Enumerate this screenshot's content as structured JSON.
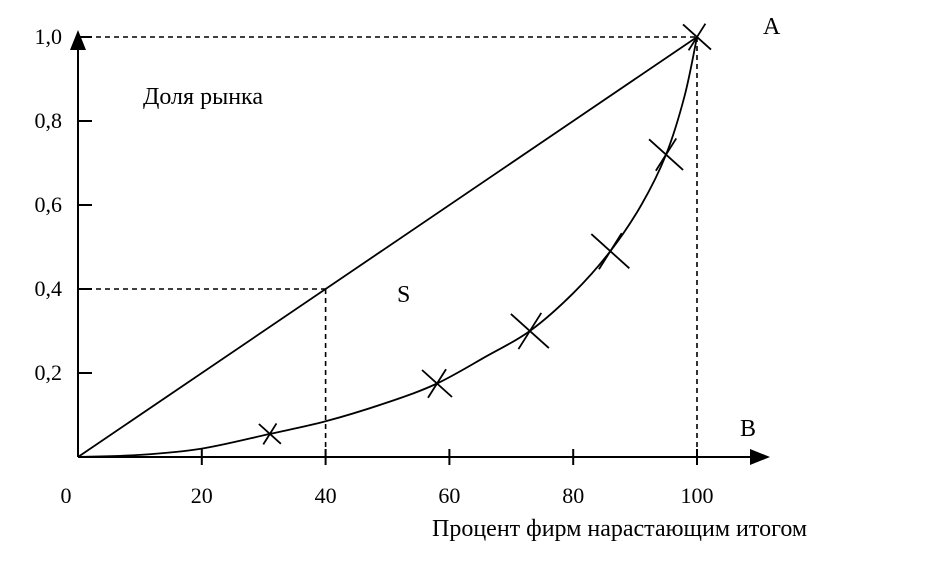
{
  "chart_data": {
    "type": "line",
    "xlabel": "Процент фирм нарастающим итогом",
    "ylabel": "Доля рынка",
    "xlim": [
      0,
      100
    ],
    "ylim": [
      0,
      1.0
    ],
    "x_ticks": [
      {
        "value": 0,
        "label": "0"
      },
      {
        "value": 20,
        "label": "20"
      },
      {
        "value": 40,
        "label": "40"
      },
      {
        "value": 60,
        "label": "60"
      },
      {
        "value": 80,
        "label": "80"
      },
      {
        "value": 100,
        "label": "100"
      }
    ],
    "y_ticks": [
      {
        "value": 0.2,
        "label": "0,2"
      },
      {
        "value": 0.4,
        "label": "0,4"
      },
      {
        "value": 0.6,
        "label": "0,6"
      },
      {
        "value": 0.8,
        "label": "0,8"
      },
      {
        "value": 1.0,
        "label": "1,0"
      }
    ],
    "diagonal": {
      "from": [
        0,
        0
      ],
      "to": [
        100,
        1.0
      ]
    },
    "curve": {
      "x": [
        0,
        10,
        20,
        31,
        40,
        50,
        58,
        66,
        73,
        80,
        86,
        91,
        95,
        98,
        100
      ],
      "y": [
        0,
        0.005,
        0.02,
        0.055,
        0.085,
        0.13,
        0.175,
        0.24,
        0.3,
        0.39,
        0.49,
        0.6,
        0.72,
        0.86,
        1.0
      ]
    },
    "markers": [
      {
        "x": 31,
        "y": 0.055
      },
      {
        "x": 58,
        "y": 0.175
      },
      {
        "x": 73,
        "y": 0.3
      },
      {
        "x": 86,
        "y": 0.49
      },
      {
        "x": 95,
        "y": 0.72
      },
      {
        "x": 100,
        "y": 1.0
      }
    ],
    "guides": [
      {
        "x": 40,
        "y": 0.4
      },
      {
        "x": 100,
        "y": 1.0
      }
    ],
    "annotations": {
      "point_a": "A",
      "point_b": "B",
      "area": "S"
    }
  }
}
